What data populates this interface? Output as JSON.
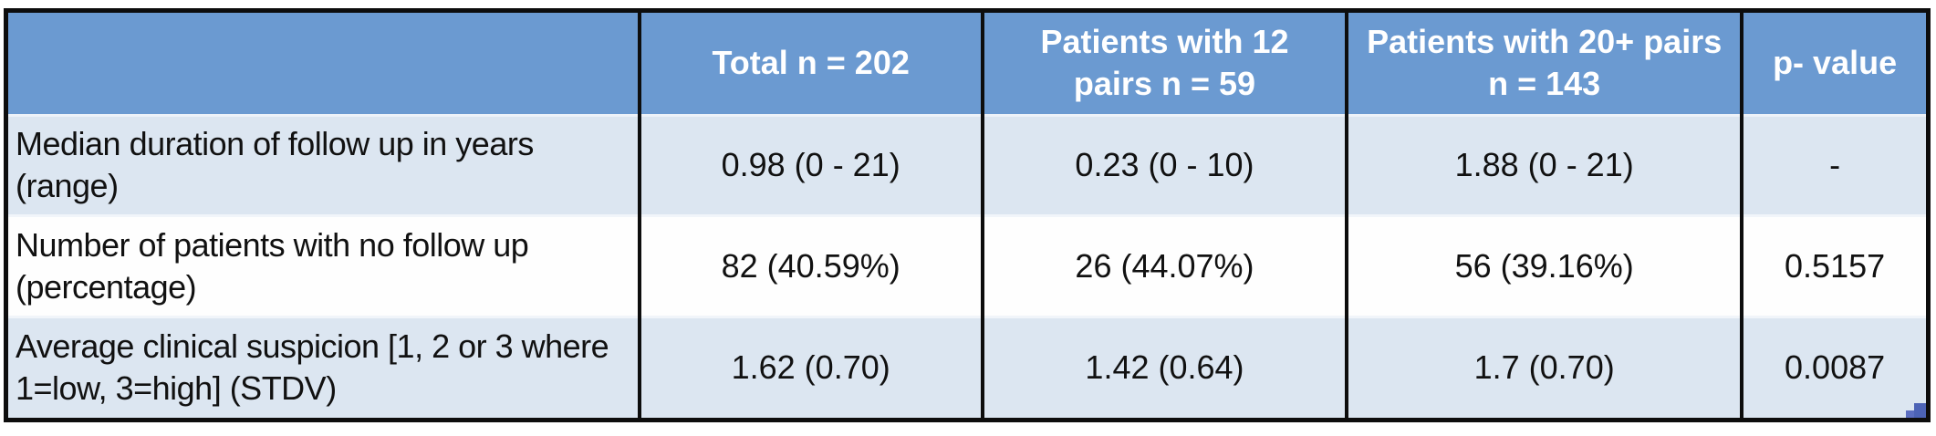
{
  "chart_data": {
    "type": "table",
    "title": "",
    "columns": [
      "",
      "Total n = 202",
      "Patients with 12 pairs n = 59",
      "Patients with 20+ pairs n = 143",
      "p- value"
    ],
    "rows": [
      [
        "Median duration of follow up in years (range)",
        "0.98 (0 - 21)",
        "0.23 (0 - 10)",
        "1.88 (0 - 21)",
        "-"
      ],
      [
        "Number of patients with no follow up (percentage)",
        "82 (40.59%)",
        "26 (44.07%)",
        "56 (39.16%)",
        "0.5157"
      ],
      [
        "Average clinical suspicion [1, 2 or 3 where 1=low, 3=high] (STDV)",
        "1.62 (0.70)",
        "1.42 (0.64)",
        "1.7 (0.70)",
        "0.0087"
      ]
    ],
    "layout_hints": {
      "header_fill": "blue",
      "body_row_striping": [
        "light-blue",
        "white",
        "light-blue"
      ],
      "gridlines": "black vertical dividers, pale horizontal dividers",
      "value_alignment": "center",
      "label_alignment": "left"
    }
  },
  "colors": {
    "header_bg": "#6b9ad1",
    "header_text": "#ffffff",
    "row_alt_bg": "#dce6f1",
    "row_bg": "#fefefe",
    "grid_line": "#0d0d0d",
    "row_divider": "#f1f5fa",
    "handle_blue": "#4c63b6",
    "handle_blue2": "#5b6ec1"
  },
  "icons": {
    "resize_handle": "table-resize-handle"
  }
}
